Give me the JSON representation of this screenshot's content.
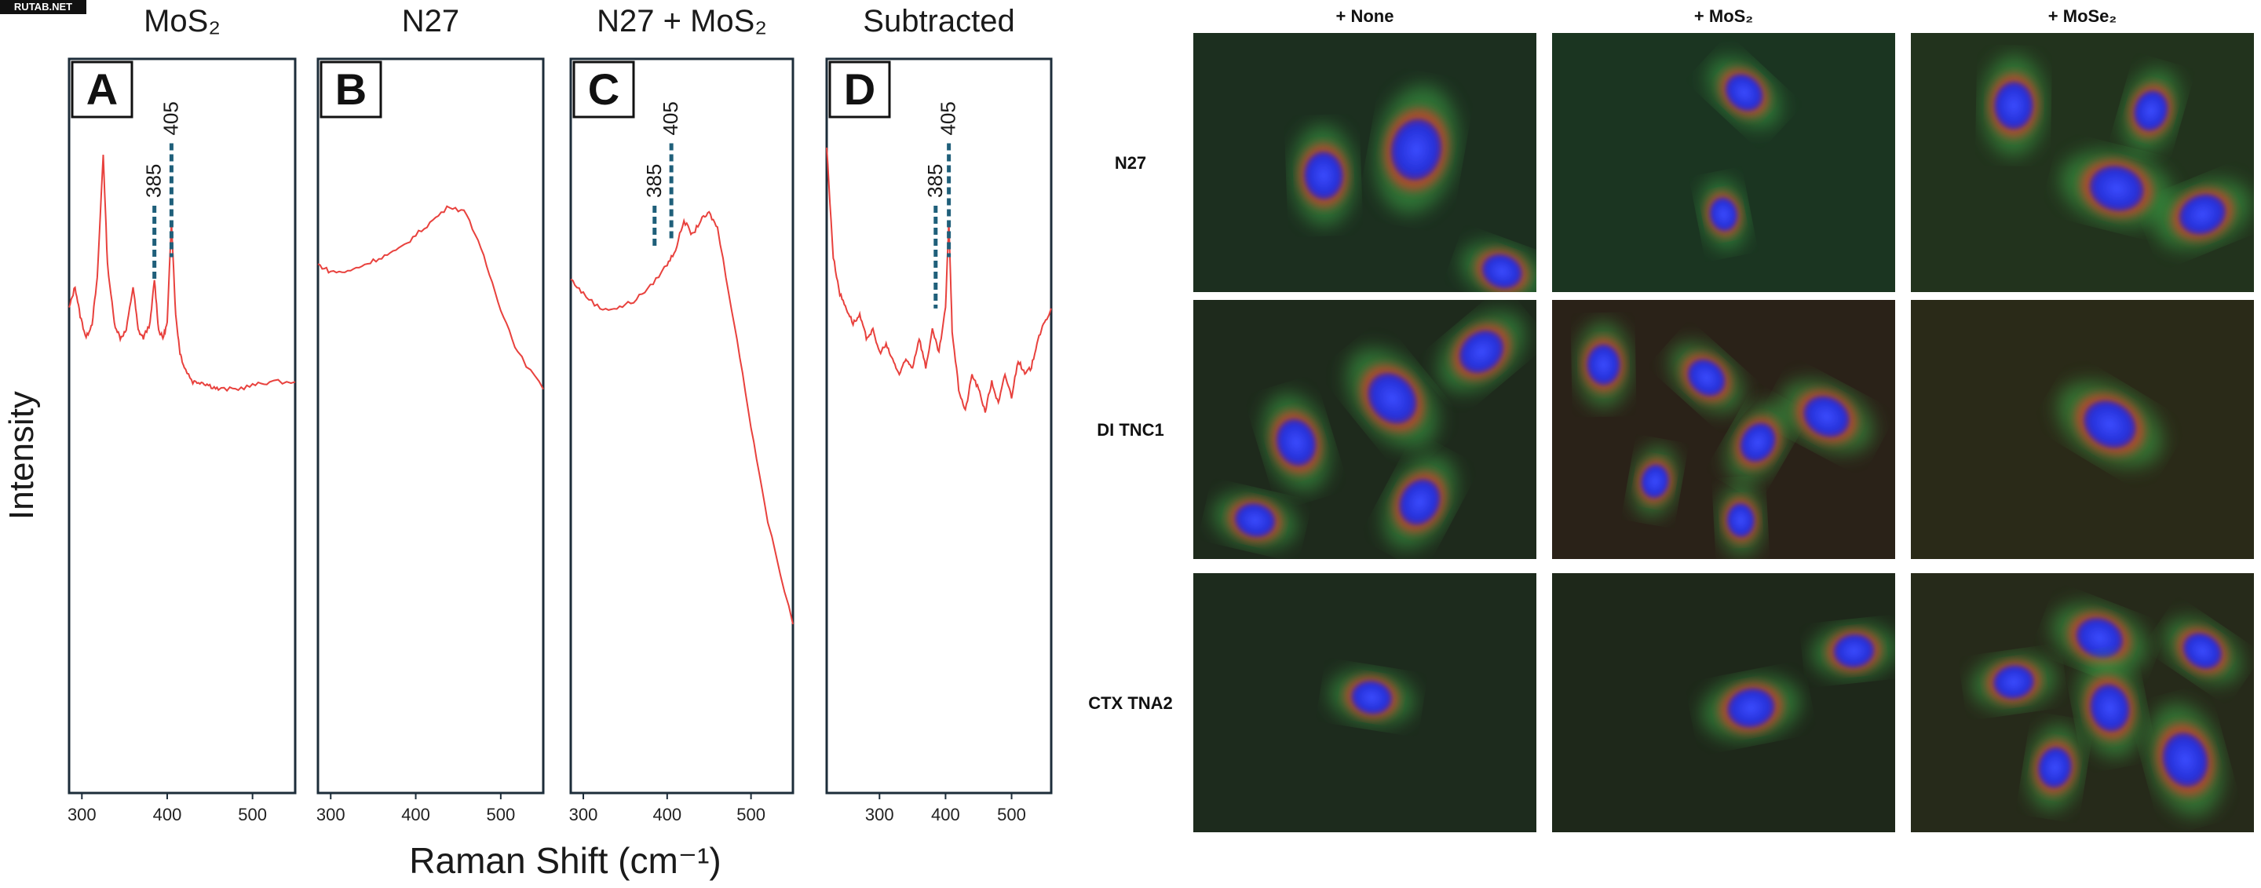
{
  "watermark": "RUTAB.NET",
  "raman": {
    "y_label": "Intensity",
    "x_label": "Raman Shift (cm⁻¹)",
    "panels": [
      {
        "letter": "A",
        "title": "MoS₂",
        "ticks": [
          "300",
          "400",
          "500"
        ]
      },
      {
        "letter": "B",
        "title": "N27",
        "ticks": [
          "300",
          "400",
          "500"
        ]
      },
      {
        "letter": "C",
        "title": "N27 + MoS₂",
        "ticks": [
          "300",
          "400",
          "500"
        ]
      },
      {
        "letter": "D",
        "title": "Subtracted",
        "ticks": [
          "300",
          "400",
          "500"
        ]
      }
    ],
    "peak_labels": [
      "385",
      "405"
    ]
  },
  "chart_data": [
    {
      "type": "line",
      "title": "MoS₂",
      "xlabel": "Raman Shift (cm⁻¹)",
      "ylabel": "Intensity",
      "xlim": [
        285,
        550
      ],
      "x": [
        285,
        292,
        298,
        305,
        312,
        318,
        325,
        330,
        338,
        345,
        352,
        360,
        366,
        372,
        380,
        385,
        390,
        395,
        400,
        405,
        410,
        415,
        420,
        430,
        440,
        450,
        460,
        480,
        500,
        520,
        550
      ],
      "values": [
        0.66,
        0.69,
        0.65,
        0.62,
        0.64,
        0.7,
        0.87,
        0.72,
        0.64,
        0.62,
        0.63,
        0.69,
        0.63,
        0.62,
        0.64,
        0.7,
        0.63,
        0.62,
        0.64,
        0.78,
        0.65,
        0.6,
        0.58,
        0.56,
        0.56,
        0.555,
        0.55,
        0.55,
        0.555,
        0.56,
        0.56
      ],
      "annotations": [
        "385",
        "405"
      ],
      "color": "#e8413d"
    },
    {
      "type": "line",
      "title": "N27",
      "xlabel": "Raman Shift (cm⁻¹)",
      "ylabel": "Intensity",
      "xlim": [
        285,
        550
      ],
      "x": [
        285,
        300,
        320,
        340,
        360,
        380,
        400,
        420,
        440,
        460,
        480,
        500,
        520,
        550
      ],
      "values": [
        0.72,
        0.71,
        0.71,
        0.72,
        0.73,
        0.74,
        0.76,
        0.78,
        0.8,
        0.79,
        0.73,
        0.66,
        0.6,
        0.55
      ],
      "color": "#e8413d"
    },
    {
      "type": "line",
      "title": "N27 + MoS₂",
      "xlabel": "Raman Shift (cm⁻¹)",
      "ylabel": "Intensity",
      "xlim": [
        285,
        550
      ],
      "x": [
        285,
        300,
        320,
        340,
        360,
        380,
        400,
        410,
        420,
        430,
        440,
        450,
        460,
        480,
        500,
        520,
        550
      ],
      "values": [
        0.7,
        0.68,
        0.66,
        0.66,
        0.67,
        0.69,
        0.72,
        0.74,
        0.78,
        0.76,
        0.78,
        0.79,
        0.77,
        0.64,
        0.5,
        0.37,
        0.23
      ],
      "annotations": [
        "385",
        "405"
      ],
      "color": "#e8413d"
    },
    {
      "type": "line",
      "title": "Subtracted",
      "xlabel": "Raman Shift (cm⁻¹)",
      "ylabel": "Intensity",
      "xlim": [
        220,
        560
      ],
      "x": [
        220,
        230,
        240,
        250,
        260,
        270,
        280,
        290,
        300,
        310,
        320,
        330,
        340,
        350,
        360,
        370,
        380,
        390,
        400,
        405,
        410,
        420,
        430,
        440,
        450,
        460,
        470,
        480,
        490,
        500,
        510,
        520,
        530,
        540,
        550,
        560
      ],
      "values": [
        0.88,
        0.73,
        0.68,
        0.66,
        0.64,
        0.65,
        0.62,
        0.63,
        0.6,
        0.61,
        0.59,
        0.57,
        0.59,
        0.58,
        0.62,
        0.58,
        0.63,
        0.6,
        0.66,
        0.78,
        0.63,
        0.55,
        0.52,
        0.57,
        0.55,
        0.52,
        0.56,
        0.53,
        0.57,
        0.54,
        0.59,
        0.57,
        0.58,
        0.62,
        0.64,
        0.66
      ],
      "annotations": [
        "385",
        "405"
      ],
      "color": "#e8413d"
    }
  ],
  "micro": {
    "columns": [
      "+ None",
      "+ MoS₂",
      "+ MoSe₂"
    ],
    "rows": [
      "N27",
      "DI TNC1",
      "CTX TNA2"
    ]
  }
}
